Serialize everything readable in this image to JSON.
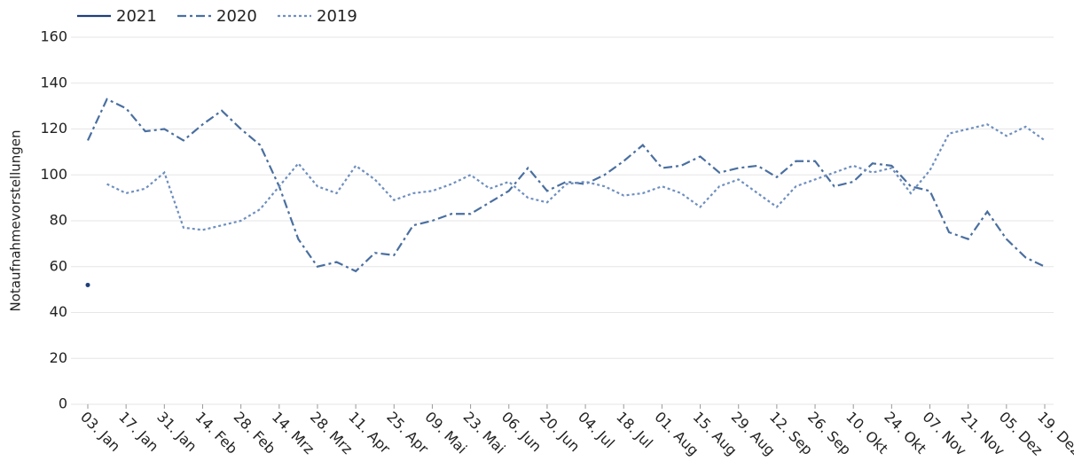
{
  "chart_data": {
    "type": "line",
    "y_label": "Notaufnahmevorstellungen",
    "categories": [
      "03. Jan",
      null,
      "17. Jan",
      null,
      "31. Jan",
      null,
      "14. Feb",
      null,
      "28. Feb",
      null,
      "14. Mrz",
      null,
      "28. Mrz",
      null,
      "11. Apr",
      null,
      "25. Apr",
      null,
      "09. Mai",
      null,
      "23. Mai",
      null,
      "06. Jun",
      null,
      "20. Jun",
      null,
      "04. Jul",
      null,
      "18. Jul",
      null,
      "01. Aug",
      null,
      "15. Aug",
      null,
      "29. Aug",
      null,
      "12. Sep",
      null,
      "26. Sep",
      null,
      "10. Okt",
      null,
      "24. Okt",
      null,
      "07. Nov",
      null,
      "21. Nov",
      null,
      "05. Dez",
      null,
      "19. Dez"
    ],
    "series": [
      {
        "name": "2021",
        "color": "#1f3f7a",
        "dash": "solid",
        "values": [
          52,
          null,
          null,
          null,
          null,
          null,
          null,
          null,
          null,
          null,
          null,
          null,
          null,
          null,
          null,
          null,
          null,
          null,
          null,
          null,
          null,
          null,
          null,
          null,
          null,
          null,
          null,
          null,
          null,
          null,
          null,
          null,
          null,
          null,
          null,
          null,
          null,
          null,
          null,
          null,
          null,
          null,
          null,
          null,
          null,
          null,
          null,
          null,
          null,
          null,
          null
        ]
      },
      {
        "name": "2020",
        "color": "#4a6fa0",
        "dash": "dashdot",
        "values": [
          115,
          133,
          129,
          119,
          120,
          115,
          122,
          128,
          120,
          113,
          95,
          72,
          60,
          62,
          58,
          66,
          65,
          78,
          80,
          83,
          83,
          88,
          93,
          103,
          93,
          97,
          96,
          100,
          106,
          113,
          103,
          104,
          108,
          101,
          103,
          104,
          99,
          106,
          106,
          95,
          97,
          105,
          104,
          95,
          93,
          75,
          72,
          84,
          72,
          64,
          60
        ]
      },
      {
        "name": "2019",
        "color": "#6f8fbf",
        "dash": "dot",
        "values": [
          null,
          96,
          92,
          94,
          101,
          77,
          76,
          78,
          80,
          85,
          95,
          105,
          95,
          92,
          104,
          98,
          89,
          92,
          93,
          96,
          100,
          94,
          97,
          90,
          88,
          96,
          97,
          95,
          91,
          92,
          95,
          92,
          86,
          95,
          98,
          92,
          86,
          95,
          98,
          101,
          104,
          101,
          103,
          92,
          102,
          118,
          120,
          122,
          117,
          121,
          115
        ]
      }
    ],
    "ylim": [
      0,
      160
    ],
    "yticks": [
      0,
      20,
      40,
      60,
      80,
      100,
      120,
      140,
      160
    ],
    "grid": true
  }
}
